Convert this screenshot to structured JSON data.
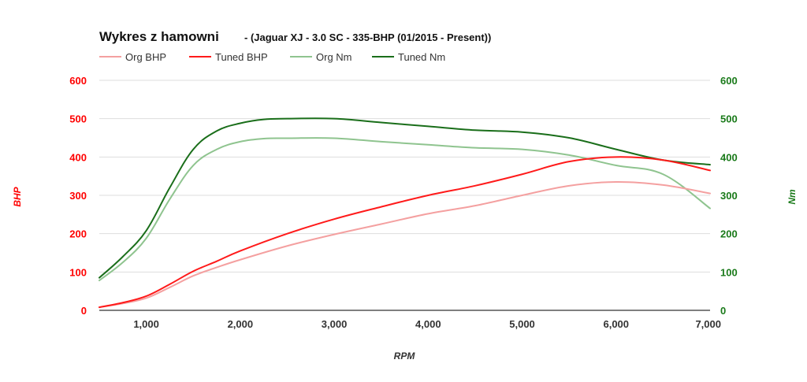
{
  "chart_data": {
    "type": "line",
    "title": "Wykres z hamowni",
    "subtitle": "- (Jaguar XJ - 3.0 SC - 335-BHP (01/2015 - Present))",
    "xlabel": "RPM",
    "ylabel_left": "BHP",
    "ylabel_right": "Nm",
    "xlim": [
      500,
      7000
    ],
    "ylim_left": [
      0,
      600
    ],
    "ylim_right": [
      0,
      600
    ],
    "x_ticks": [
      1000,
      2000,
      3000,
      4000,
      5000,
      6000,
      7000
    ],
    "x_tick_labels": [
      "1,000",
      "2,000",
      "3,000",
      "4,000",
      "5,000",
      "6,000",
      "7,000"
    ],
    "y_ticks": [
      0,
      100,
      200,
      300,
      400,
      500,
      600
    ],
    "y_tick_labels": [
      "0",
      "100",
      "200",
      "300",
      "400",
      "500",
      "600"
    ],
    "grid": true,
    "legend_position": "top-left",
    "colors": {
      "left_axis": "#ff0000",
      "right_axis": "#1a7a1a",
      "grid": "#dddddd",
      "baseline": "#333333"
    },
    "series": [
      {
        "name": "Org BHP",
        "axis": "left",
        "color": "#f4a0a0",
        "x": [
          500,
          750,
          1000,
          1250,
          1500,
          1750,
          2000,
          2500,
          3000,
          3500,
          4000,
          4500,
          5000,
          5500,
          6000,
          6500,
          7000
        ],
        "y": [
          8,
          18,
          32,
          60,
          90,
          112,
          132,
          168,
          198,
          225,
          252,
          273,
          300,
          325,
          335,
          327,
          305
        ]
      },
      {
        "name": "Tuned BHP",
        "axis": "left",
        "color": "#ff1a1a",
        "x": [
          500,
          750,
          1000,
          1250,
          1500,
          1750,
          2000,
          2500,
          3000,
          3500,
          4000,
          4500,
          5000,
          5500,
          6000,
          6500,
          7000
        ],
        "y": [
          8,
          20,
          37,
          68,
          102,
          128,
          155,
          200,
          238,
          270,
          300,
          325,
          355,
          388,
          400,
          392,
          365
        ]
      },
      {
        "name": "Org Nm",
        "axis": "right",
        "color": "#8fc48f",
        "x": [
          500,
          750,
          1000,
          1250,
          1500,
          1750,
          2000,
          2250,
          2500,
          3000,
          3500,
          4000,
          4500,
          5000,
          5500,
          6000,
          6500,
          7000
        ],
        "y": [
          78,
          125,
          188,
          290,
          378,
          420,
          440,
          448,
          449,
          449,
          440,
          432,
          424,
          420,
          405,
          378,
          355,
          266
        ]
      },
      {
        "name": "Tuned Nm",
        "axis": "right",
        "color": "#1a6e1a",
        "x": [
          500,
          750,
          1000,
          1250,
          1500,
          1750,
          2000,
          2250,
          2500,
          3000,
          3500,
          4000,
          4500,
          5000,
          5500,
          6000,
          6500,
          7000
        ],
        "y": [
          85,
          140,
          208,
          320,
          420,
          468,
          488,
          498,
          500,
          500,
          490,
          480,
          470,
          465,
          450,
          420,
          392,
          380
        ]
      }
    ]
  }
}
